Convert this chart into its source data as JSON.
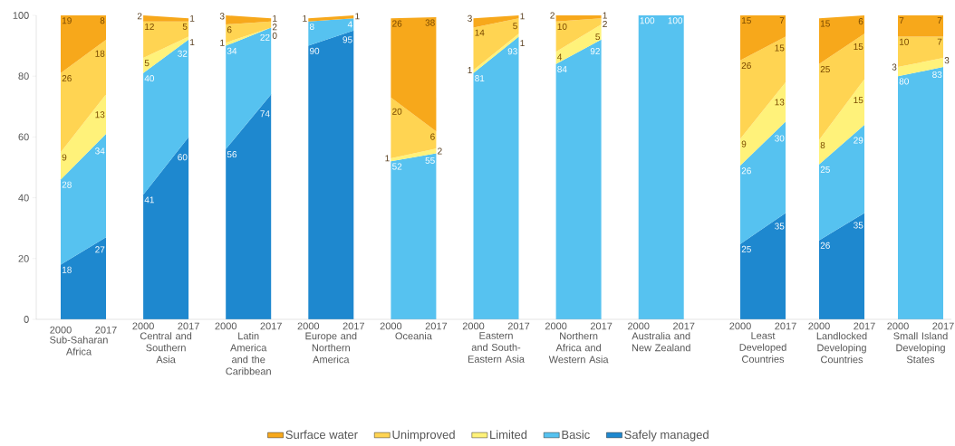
{
  "chart_data": [
    {
      "type": "area",
      "stacked": true,
      "xlabel": "Sub-Saharan Africa",
      "categories": [
        "2000",
        "2017"
      ],
      "ylim": [
        0,
        100
      ],
      "yticks": [
        0,
        20,
        40,
        60,
        80,
        100
      ],
      "data_labels": true,
      "legend": "bottom",
      "series": [
        {
          "name": "Safely managed",
          "color": "#1e88cf",
          "values": [
            18,
            27
          ]
        },
        {
          "name": "Basic",
          "color": "#56c2f0",
          "values": [
            28,
            34
          ]
        },
        {
          "name": "Limited",
          "color": "#fff27a",
          "values": [
            9,
            13
          ]
        },
        {
          "name": "Unimproved",
          "color": "#ffd452",
          "values": [
            26,
            18
          ]
        },
        {
          "name": "Surface water",
          "color": "#f7a81b",
          "values": [
            19,
            8
          ]
        }
      ]
    },
    {
      "type": "area",
      "stacked": true,
      "xlabel": "Central and Southern Asia",
      "categories": [
        "2000",
        "2017"
      ],
      "ylim": [
        0,
        100
      ],
      "tick_labels": "x",
      "data_labels": true,
      "series": [
        {
          "color": "#1e88cf",
          "values": [
            41,
            60
          ]
        },
        {
          "color": "#56c2f0",
          "values": [
            40,
            32
          ]
        },
        {
          "color": "#fff27a",
          "values": [
            5,
            1
          ]
        },
        {
          "color": "#ffd452",
          "values": [
            12,
            5
          ]
        },
        {
          "color": "#f7a81b",
          "values": [
            2,
            1
          ]
        }
      ]
    },
    {
      "type": "area",
      "stacked": true,
      "xlabel": "Latin America and the Caribbean",
      "categories": [
        "2000",
        "2017"
      ],
      "ylim": [
        0,
        100
      ],
      "tick_labels": "x",
      "data_labels": true,
      "series": [
        {
          "color": "#1e88cf",
          "values": [
            56,
            74
          ]
        },
        {
          "color": "#56c2f0",
          "values": [
            34,
            22
          ]
        },
        {
          "color": "#fff27a",
          "values": [
            1,
            0
          ]
        },
        {
          "color": "#ffd452",
          "values": [
            6,
            2
          ]
        },
        {
          "color": "#f7a81b",
          "values": [
            3,
            1
          ]
        }
      ]
    },
    {
      "type": "area",
      "stacked": true,
      "xlabel": "Europe and Northern America",
      "categories": [
        "2000",
        "2017"
      ],
      "ylim": [
        0,
        100
      ],
      "tick_labels": "x",
      "data_labels": true,
      "series": [
        {
          "color": "#1e88cf",
          "values": [
            90,
            95
          ]
        },
        {
          "color": "#56c2f0",
          "values": [
            8,
            4
          ]
        },
        {
          "color": "#fff27a",
          "values": [
            null,
            null
          ]
        },
        {
          "color": "#ffd452",
          "values": [
            null,
            null
          ]
        },
        {
          "color": "#f7a81b",
          "values": [
            1,
            1
          ]
        }
      ]
    },
    {
      "type": "area",
      "stacked": true,
      "xlabel": "Oceania",
      "categories": [
        "2000",
        "2017"
      ],
      "ylim": [
        0,
        100
      ],
      "tick_labels": "x",
      "series": [
        {
          "color": "#1e88cf",
          "values": [
            null,
            null
          ]
        },
        {
          "color": "#56c2f0",
          "values": [
            52,
            54.6
          ],
          "value_labels": [
            "52",
            "55"
          ]
        },
        {
          "color": "#fff27a",
          "values": [
            1,
            1.6
          ],
          "value_labels": [
            "1",
            "2"
          ]
        },
        {
          "color": "#ffd452",
          "values": [
            20,
            5.6
          ],
          "value_labels": [
            "20",
            "6"
          ]
        },
        {
          "color": "#f7a81b",
          "values": [
            26,
            37.6
          ],
          "value_labels": [
            "26",
            "38"
          ]
        }
      ]
    },
    {
      "type": "area",
      "stacked": true,
      "xlabel": "Eastern and South-Eastern Asia",
      "categories": [
        "2000",
        "2017"
      ],
      "ylim": [
        0,
        100
      ],
      "tick_labels": "x",
      "data_labels": true,
      "series": [
        {
          "color": "#1e88cf",
          "values": [
            null,
            null
          ]
        },
        {
          "color": "#56c2f0",
          "values": [
            81,
            93
          ]
        },
        {
          "color": "#fff27a",
          "values": [
            1,
            1
          ]
        },
        {
          "color": "#ffd452",
          "values": [
            14,
            5
          ]
        },
        {
          "color": "#f7a81b",
          "values": [
            3,
            1
          ]
        }
      ]
    },
    {
      "type": "area",
      "stacked": true,
      "xlabel": "Northern Africa and Western Asia",
      "categories": [
        "2000",
        "2017"
      ],
      "ylim": [
        0,
        100
      ],
      "tick_labels": "x",
      "data_labels": true,
      "series": [
        {
          "color": "#1e88cf",
          "values": [
            null,
            null
          ]
        },
        {
          "color": "#56c2f0",
          "values": [
            84,
            92
          ]
        },
        {
          "color": "#fff27a",
          "values": [
            4,
            5
          ]
        },
        {
          "color": "#ffd452",
          "values": [
            10,
            2
          ]
        },
        {
          "color": "#f7a81b",
          "values": [
            2,
            1
          ]
        }
      ]
    },
    {
      "type": "area",
      "stacked": true,
      "xlabel": "Australia and New Zealand",
      "categories": [
        "2000",
        "2017"
      ],
      "ylim": [
        0,
        100
      ],
      "tick_labels": "x",
      "data_labels": true,
      "series": [
        {
          "color": "#1e88cf",
          "values": [
            null,
            null
          ]
        },
        {
          "color": "#56c2f0",
          "values": [
            100,
            100
          ]
        },
        {
          "color": "#fff27a",
          "values": [
            null,
            null
          ]
        },
        {
          "color": "#ffd452",
          "values": [
            null,
            null
          ]
        },
        {
          "color": "#f7a81b",
          "values": [
            null,
            null
          ]
        }
      ]
    },
    {
      "type": "area",
      "stacked": true,
      "xlabel": "Least Developed Countries",
      "categories": [
        "2000",
        "2017"
      ],
      "ylim": [
        0,
        100
      ],
      "tick_labels": "x",
      "series": [
        {
          "color": "#1e88cf",
          "values": [
            24.8,
            35
          ],
          "value_labels": [
            "25",
            "35"
          ]
        },
        {
          "color": "#56c2f0",
          "values": [
            25.8,
            30
          ],
          "value_labels": [
            "26",
            "30"
          ]
        },
        {
          "color": "#fff27a",
          "values": [
            8.8,
            13
          ],
          "value_labels": [
            "9",
            "13"
          ]
        },
        {
          "color": "#ffd452",
          "values": [
            25.8,
            15
          ],
          "value_labels": [
            "26",
            "15"
          ]
        },
        {
          "color": "#f7a81b",
          "values": [
            14.8,
            7
          ],
          "value_labels": [
            "15",
            "7"
          ]
        }
      ]
    },
    {
      "type": "area",
      "stacked": true,
      "xlabel": "Landlocked Developing Countries",
      "categories": [
        "2000",
        "2017"
      ],
      "ylim": [
        0,
        100
      ],
      "tick_labels": "x",
      "data_labels": true,
      "series": [
        {
          "color": "#1e88cf",
          "values": [
            26,
            35
          ]
        },
        {
          "color": "#56c2f0",
          "values": [
            25,
            29
          ]
        },
        {
          "color": "#fff27a",
          "values": [
            8,
            15
          ]
        },
        {
          "color": "#ffd452",
          "values": [
            25,
            15
          ]
        },
        {
          "color": "#f7a81b",
          "values": [
            15,
            6
          ]
        }
      ]
    },
    {
      "type": "area",
      "stacked": true,
      "xlabel": "Small Island Developing States",
      "categories": [
        "2000",
        "2017"
      ],
      "ylim": [
        0,
        100
      ],
      "tick_labels": "x",
      "data_labels": true,
      "series": [
        {
          "color": "#1e88cf",
          "values": [
            null,
            null
          ]
        },
        {
          "color": "#56c2f0",
          "values": [
            80,
            83
          ]
        },
        {
          "color": "#fff27a",
          "values": [
            3,
            3
          ]
        },
        {
          "color": "#ffd452",
          "values": [
            10,
            7
          ]
        },
        {
          "color": "#f7a81b",
          "values": [
            7,
            7
          ]
        }
      ]
    }
  ]
}
